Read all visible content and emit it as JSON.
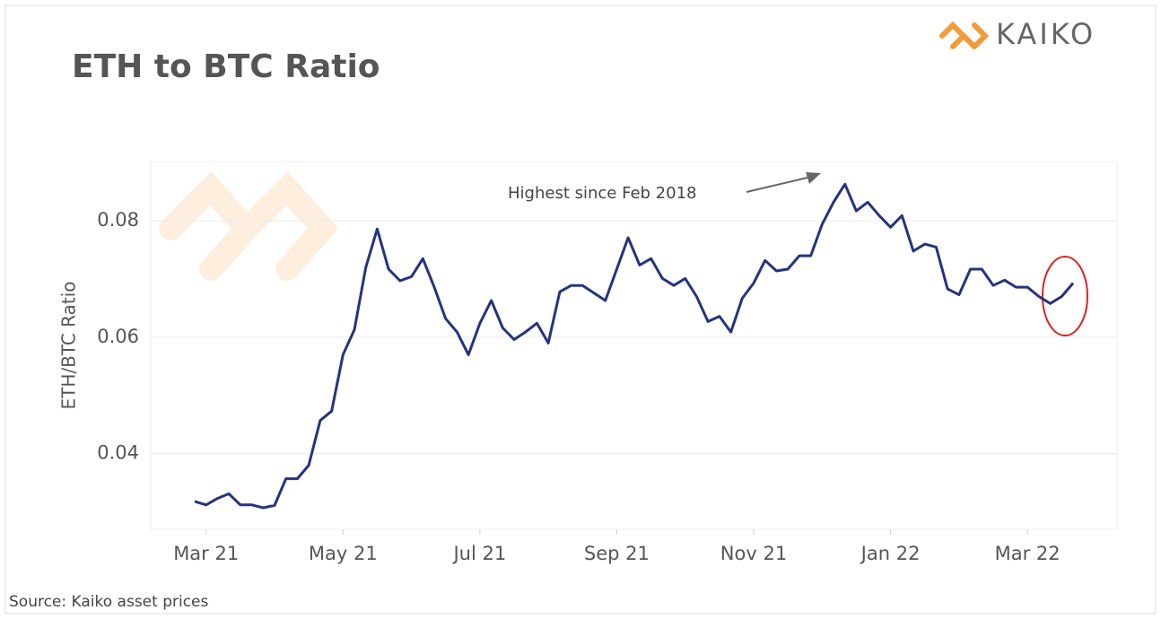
{
  "chart_data": {
    "type": "line",
    "title": "ETH to BTC Ratio",
    "logo": "KAIKO",
    "y_label": "ETH/BTC Ratio",
    "source": "Source: Kaiko asset prices",
    "annotation": "Highest since Feb 2018",
    "categories": [
      null,
      "Mar 21",
      null,
      null,
      null,
      null,
      null,
      null,
      null,
      null,
      null,
      null,
      null,
      "May 21",
      null,
      null,
      null,
      null,
      null,
      null,
      null,
      null,
      null,
      null,
      null,
      "Jul 21",
      null,
      null,
      null,
      null,
      null,
      null,
      null,
      null,
      null,
      null,
      null,
      "Sep 21",
      null,
      null,
      null,
      null,
      null,
      null,
      null,
      null,
      null,
      null,
      null,
      "Nov 21",
      null,
      null,
      null,
      null,
      null,
      null,
      null,
      null,
      null,
      null,
      null,
      "Jan 22",
      null,
      null,
      null,
      null,
      null,
      null,
      null,
      null,
      null,
      null,
      null,
      "Mar 22",
      null,
      null,
      null,
      null
    ],
    "series": [
      {
        "name": "ETH/BTC",
        "color": "#26337f",
        "values": [
          0.0318,
          0.0312,
          0.0323,
          0.0331,
          0.0312,
          0.0312,
          0.0307,
          0.0311,
          0.0357,
          0.0357,
          0.038,
          0.0457,
          0.0473,
          0.057,
          0.0613,
          0.072,
          0.0786,
          0.0717,
          0.0697,
          0.0704,
          0.0735,
          0.0686,
          0.0632,
          0.0609,
          0.057,
          0.0624,
          0.0663,
          0.0616,
          0.0596,
          0.0609,
          0.0624,
          0.059,
          0.0678,
          0.0689,
          0.0689,
          0.0676,
          0.0663,
          0.0717,
          0.0771,
          0.0724,
          0.0735,
          0.0701,
          0.0689,
          0.0701,
          0.067,
          0.0627,
          0.0636,
          0.0609,
          0.0667,
          0.0693,
          0.0732,
          0.0714,
          0.0717,
          0.074,
          0.074,
          0.0794,
          0.0832,
          0.0863,
          0.0817,
          0.0832,
          0.0809,
          0.0789,
          0.0809,
          0.0748,
          0.076,
          0.0755,
          0.0683,
          0.0673,
          0.0717,
          0.0717,
          0.0689,
          0.0698,
          0.0686,
          0.0686,
          0.067,
          0.0658,
          0.067,
          0.0693
        ]
      }
    ],
    "ylim": [
      0.027,
      0.0902
    ],
    "yticks": [
      0.04,
      0.06,
      0.08
    ],
    "grid": true
  }
}
